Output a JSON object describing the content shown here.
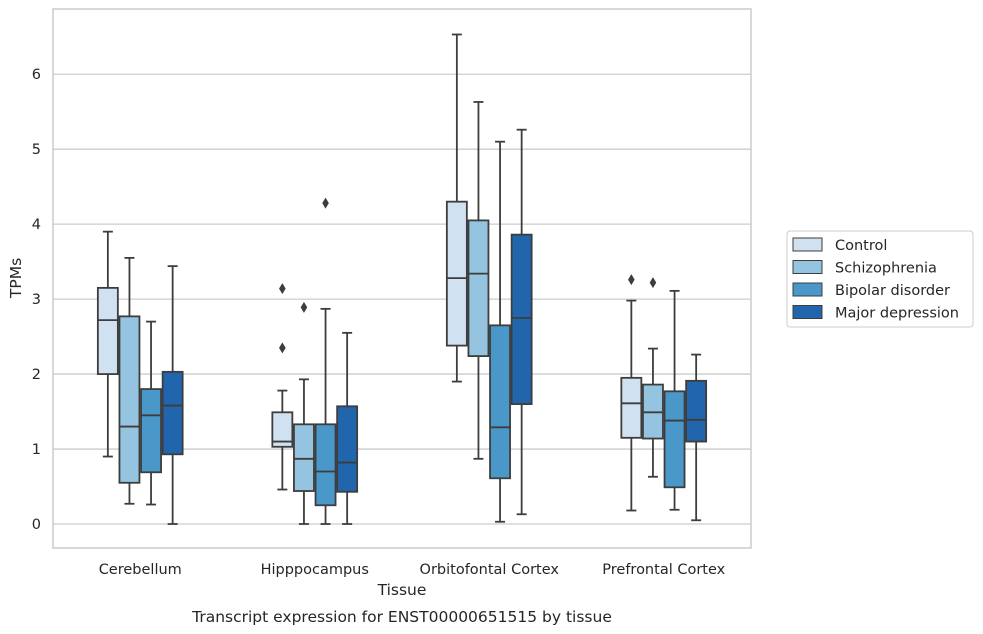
{
  "chart_data": {
    "type": "boxplot",
    "title": "",
    "caption": "Transcript expression for ENST00000651515 by tissue",
    "xlabel": "Tissue",
    "ylabel": "TPMs",
    "ylim": [
      -0.32,
      6.87
    ],
    "yticks": [
      0,
      1,
      2,
      3,
      4,
      5,
      6
    ],
    "categories": [
      "Cerebellum",
      "Hipppocampus",
      "Orbitofontal Cortex",
      "Prefrontal Cortex"
    ],
    "grid": "horizontal",
    "legend_position": "right",
    "series": [
      {
        "name": "Control",
        "color": "#d0e1f2",
        "boxes": [
          {
            "whisker_low": 0.9,
            "q1": 2.0,
            "median": 2.72,
            "q3": 3.15,
            "whisker_high": 3.9,
            "outliers": []
          },
          {
            "whisker_low": 0.46,
            "q1": 1.03,
            "median": 1.1,
            "q3": 1.49,
            "whisker_high": 1.78,
            "outliers": [
              2.35,
              3.14
            ]
          },
          {
            "whisker_low": 1.9,
            "q1": 2.38,
            "median": 3.28,
            "q3": 4.3,
            "whisker_high": 6.53,
            "outliers": []
          },
          {
            "whisker_low": 0.18,
            "q1": 1.15,
            "median": 1.61,
            "q3": 1.95,
            "whisker_high": 2.98,
            "outliers": [
              3.26
            ]
          }
        ]
      },
      {
        "name": "Schizophrenia",
        "color": "#94c4df",
        "boxes": [
          {
            "whisker_low": 0.27,
            "q1": 0.55,
            "median": 1.3,
            "q3": 2.77,
            "whisker_high": 3.55,
            "outliers": []
          },
          {
            "whisker_low": 0.0,
            "q1": 0.44,
            "median": 0.87,
            "q3": 1.33,
            "whisker_high": 1.93,
            "outliers": [
              2.89
            ]
          },
          {
            "whisker_low": 0.87,
            "q1": 2.24,
            "median": 3.34,
            "q3": 4.05,
            "whisker_high": 5.63,
            "outliers": []
          },
          {
            "whisker_low": 0.63,
            "q1": 1.14,
            "median": 1.49,
            "q3": 1.86,
            "whisker_high": 2.34,
            "outliers": [
              3.22
            ]
          }
        ]
      },
      {
        "name": "Bipolar disorder",
        "color": "#4a98c9",
        "boxes": [
          {
            "whisker_low": 0.26,
            "q1": 0.69,
            "median": 1.45,
            "q3": 1.8,
            "whisker_high": 2.7,
            "outliers": []
          },
          {
            "whisker_low": 0.0,
            "q1": 0.25,
            "median": 0.7,
            "q3": 1.33,
            "whisker_high": 2.87,
            "outliers": [
              4.28
            ]
          },
          {
            "whisker_low": 0.03,
            "q1": 0.61,
            "median": 1.29,
            "q3": 2.65,
            "whisker_high": 5.1,
            "outliers": []
          },
          {
            "whisker_low": 0.19,
            "q1": 0.49,
            "median": 1.38,
            "q3": 1.77,
            "whisker_high": 3.11,
            "outliers": []
          }
        ]
      },
      {
        "name": "Major depression",
        "color": "#2166ac",
        "boxes": [
          {
            "whisker_low": 0.0,
            "q1": 0.93,
            "median": 1.58,
            "q3": 2.03,
            "whisker_high": 3.44,
            "outliers": []
          },
          {
            "whisker_low": 0.0,
            "q1": 0.43,
            "median": 0.82,
            "q3": 1.57,
            "whisker_high": 2.55,
            "outliers": []
          },
          {
            "whisker_low": 0.13,
            "q1": 1.6,
            "median": 2.75,
            "q3": 3.86,
            "whisker_high": 5.26,
            "outliers": []
          },
          {
            "whisker_low": 0.05,
            "q1": 1.1,
            "median": 1.39,
            "q3": 1.91,
            "whisker_high": 2.26,
            "outliers": []
          }
        ]
      }
    ]
  }
}
